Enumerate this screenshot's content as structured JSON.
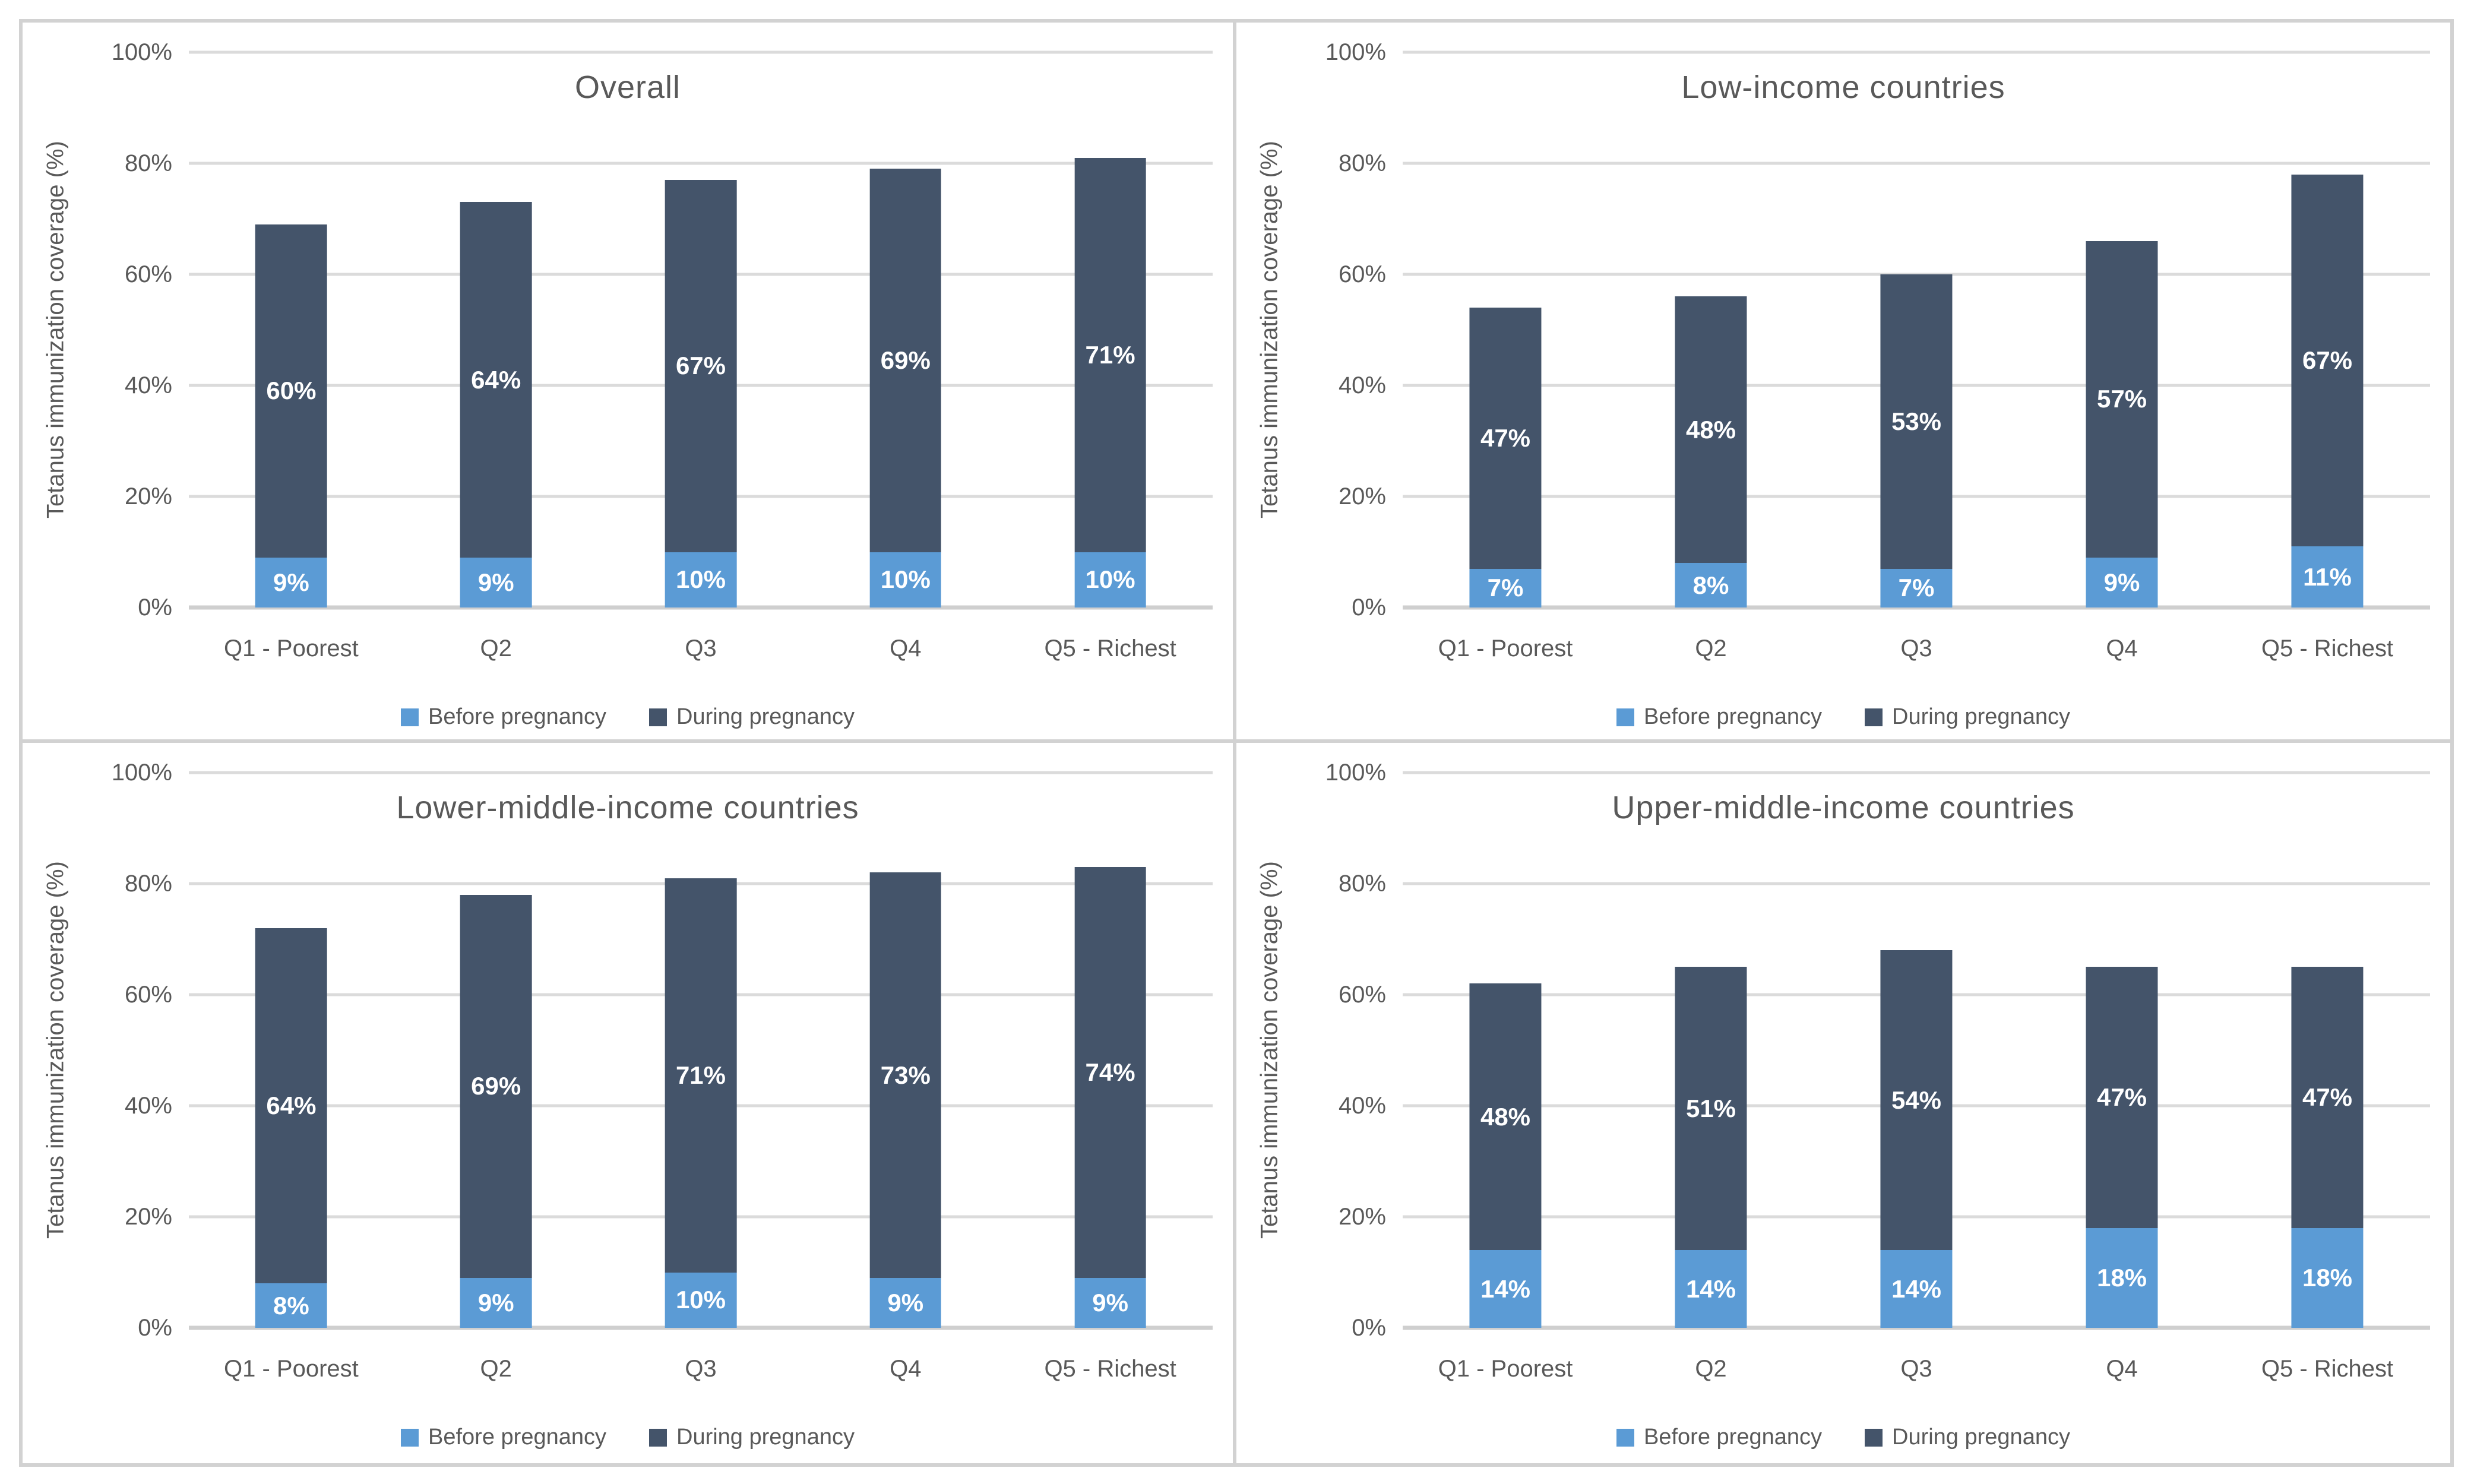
{
  "figure": {
    "colors": {
      "series": [
        "#5B9BD5",
        "#44546A"
      ],
      "gridline": "#DBDBDB",
      "zero_line": "#CFCFCF",
      "frame": "#D2D2D2",
      "text": "#595959",
      "bar_label": "#FFFFFF"
    },
    "value_suffix": "%"
  },
  "chart_data": [
    {
      "type": "bar",
      "stacked": true,
      "title": "Overall",
      "ylabel": "Tetanus immunization coverage (%)",
      "xlabel": "",
      "categories": [
        "Q1 - Poorest",
        "Q2",
        "Q3",
        "Q4",
        "Q5 - Richest"
      ],
      "series": [
        {
          "name": "Before pregnancy",
          "values": [
            9,
            9,
            10,
            10,
            10
          ]
        },
        {
          "name": "During pregnancy",
          "values": [
            60,
            64,
            67,
            69,
            71
          ]
        }
      ],
      "ylim": [
        0,
        100
      ],
      "yticks": [
        "0%",
        "20%",
        "40%",
        "60%",
        "80%",
        "100%"
      ],
      "grid": true,
      "legend_position": "bottom"
    },
    {
      "type": "bar",
      "stacked": true,
      "title": "Low-income countries",
      "ylabel": "Tetanus immunization coverage (%)",
      "xlabel": "",
      "categories": [
        "Q1 - Poorest",
        "Q2",
        "Q3",
        "Q4",
        "Q5 - Richest"
      ],
      "series": [
        {
          "name": "Before pregnancy",
          "values": [
            7,
            8,
            7,
            9,
            11
          ]
        },
        {
          "name": "During pregnancy",
          "values": [
            47,
            48,
            53,
            57,
            67
          ]
        }
      ],
      "ylim": [
        0,
        100
      ],
      "yticks": [
        "0%",
        "20%",
        "40%",
        "60%",
        "80%",
        "100%"
      ],
      "grid": true,
      "legend_position": "bottom"
    },
    {
      "type": "bar",
      "stacked": true,
      "title": "Lower-middle-income countries",
      "ylabel": "Tetanus immunization coverage (%)",
      "xlabel": "",
      "categories": [
        "Q1 - Poorest",
        "Q2",
        "Q3",
        "Q4",
        "Q5 - Richest"
      ],
      "series": [
        {
          "name": "Before pregnancy",
          "values": [
            8,
            9,
            10,
            9,
            9
          ]
        },
        {
          "name": "During pregnancy",
          "values": [
            64,
            69,
            71,
            73,
            74
          ]
        }
      ],
      "ylim": [
        0,
        100
      ],
      "yticks": [
        "0%",
        "20%",
        "40%",
        "60%",
        "80%",
        "100%"
      ],
      "grid": true,
      "legend_position": "bottom"
    },
    {
      "type": "bar",
      "stacked": true,
      "title": "Upper-middle-income countries",
      "ylabel": "Tetanus immunization coverage (%)",
      "xlabel": "",
      "categories": [
        "Q1 - Poorest",
        "Q2",
        "Q3",
        "Q4",
        "Q5 - Richest"
      ],
      "series": [
        {
          "name": "Before pregnancy",
          "values": [
            14,
            14,
            14,
            18,
            18
          ]
        },
        {
          "name": "During pregnancy",
          "values": [
            48,
            51,
            54,
            47,
            47
          ]
        }
      ],
      "ylim": [
        0,
        100
      ],
      "yticks": [
        "0%",
        "20%",
        "40%",
        "60%",
        "80%",
        "100%"
      ],
      "grid": true,
      "legend_position": "bottom"
    }
  ]
}
